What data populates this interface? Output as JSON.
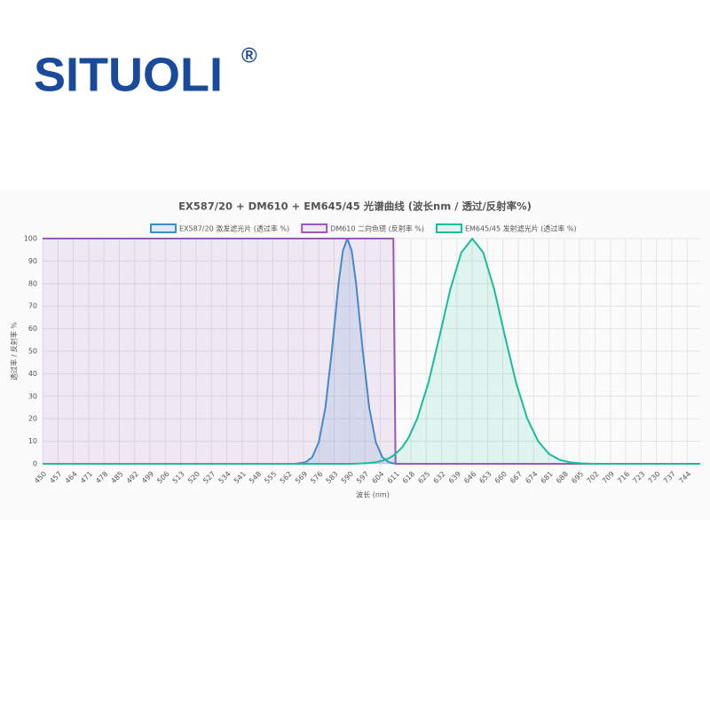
{
  "logo": {
    "text": "SITUOLI",
    "mark": "®"
  },
  "chart_data": {
    "type": "line",
    "title": "EX587/20 + DM610 + EM645/45 光谱曲线 (波长nm / 透过/反射率%)",
    "x_label": "波长 (nm)",
    "y_label": "透过率 / 反射率 %",
    "x": [
      450,
      560,
      565,
      570,
      573,
      576,
      579,
      582,
      585,
      587,
      589,
      591,
      593,
      596,
      599,
      602,
      605,
      608,
      610,
      611,
      614,
      617,
      621,
      626,
      631,
      636,
      641,
      646,
      651,
      656,
      661,
      666,
      671,
      676,
      681,
      686,
      691,
      696,
      701,
      710,
      750
    ],
    "series": [
      {
        "name": "EX587/20 激发滤光片 (透过率 %)",
        "color": "#3a8fcf",
        "fill": "rgba(58,143,207,0.15)",
        "values": [
          0,
          0,
          0,
          0.7,
          2.9,
          9.6,
          24.9,
          50.6,
          80.1,
          94.6,
          100,
          94.6,
          80.1,
          50.6,
          24.9,
          9.6,
          2.9,
          0.7,
          0.2,
          0.1,
          0,
          0,
          0,
          0,
          0,
          0,
          0,
          0,
          0,
          0,
          0,
          0,
          0,
          0,
          0,
          0,
          0,
          0,
          0,
          0,
          0
        ]
      },
      {
        "name": "DM610 二向色镜 (反射率 %)",
        "color": "#9b59b6",
        "fill": "rgba(155,89,182,0.12)",
        "values": [
          100,
          100,
          100,
          100,
          100,
          100,
          100,
          100,
          100,
          100,
          100,
          100,
          100,
          100,
          100,
          100,
          100,
          100,
          100,
          0,
          0,
          0,
          0,
          0,
          0,
          0,
          0,
          0,
          0,
          0,
          0,
          0,
          0,
          0,
          0,
          0,
          0,
          0,
          0,
          0,
          0
        ]
      },
      {
        "name": "EM645/45 发射滤光片 (透过率 %)",
        "color": "#1abc9c",
        "fill": "rgba(26,188,156,0.12)",
        "values": [
          0,
          0,
          0,
          0,
          0,
          0,
          0,
          0,
          0,
          0,
          0,
          0,
          0.1,
          0.2,
          0.4,
          0.7,
          1.4,
          2.5,
          3.7,
          4.4,
          7.3,
          11.7,
          20.3,
          36,
          56.3,
          77.5,
          93.8,
          100,
          93.8,
          77.5,
          56.3,
          36,
          20.3,
          10.1,
          4.4,
          1.7,
          0.6,
          0.2,
          0,
          0,
          0
        ]
      }
    ],
    "xlim": [
      450,
      750
    ],
    "ylim": [
      0,
      100
    ],
    "xticks": [
      450,
      457,
      464,
      471,
      478,
      485,
      492,
      499,
      506,
      513,
      520,
      527,
      534,
      541,
      548,
      555,
      562,
      569,
      576,
      583,
      590,
      597,
      604,
      611,
      618,
      625,
      632,
      639,
      646,
      653,
      660,
      667,
      674,
      681,
      688,
      695,
      702,
      709,
      716,
      723,
      730,
      737,
      744
    ],
    "yticks": [
      0,
      10,
      20,
      30,
      40,
      50,
      60,
      70,
      80,
      90,
      100
    ],
    "grid": true,
    "legend": "top"
  }
}
